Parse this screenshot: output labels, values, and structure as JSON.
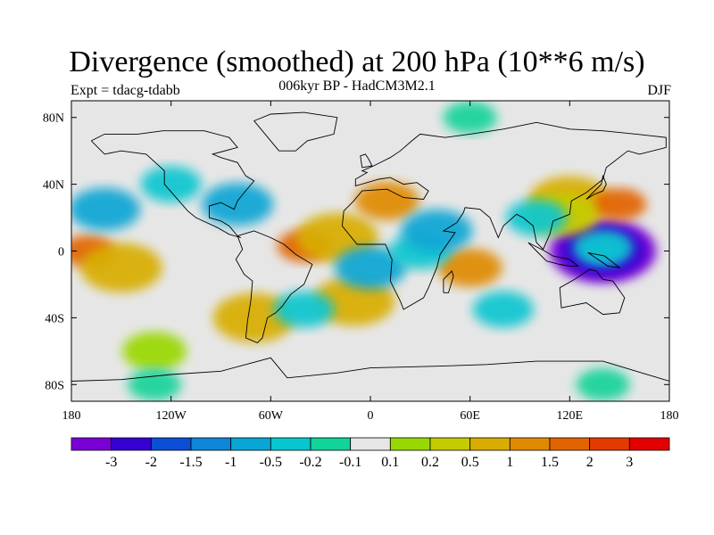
{
  "header": {
    "title": "Divergence (smoothed) at 200 hPa (10**6 m/s)",
    "subtitle": "006kyr BP - HadCM3M2.1",
    "experiment": "Expt = tdacg-tdabb",
    "season": "DJF"
  },
  "map": {
    "projection": "cylindrical equidistant",
    "lon_range": [
      -180,
      180
    ],
    "lat_range": [
      -90,
      90
    ],
    "lat_ticks": [
      {
        "value": 80,
        "label": "80N"
      },
      {
        "value": 40,
        "label": "40N"
      },
      {
        "value": 0,
        "label": "0"
      },
      {
        "value": -40,
        "label": "40S"
      },
      {
        "value": -80,
        "label": "80S"
      }
    ],
    "lon_ticks": [
      {
        "value": -180,
        "label": "180"
      },
      {
        "value": -120,
        "label": "120W"
      },
      {
        "value": -60,
        "label": "60W"
      },
      {
        "value": 0,
        "label": "0"
      },
      {
        "value": 60,
        "label": "60E"
      },
      {
        "value": 120,
        "label": "120E"
      },
      {
        "value": 180,
        "label": "180"
      }
    ]
  },
  "colorbar": {
    "colors": [
      "#7a00d6",
      "#3500d0",
      "#0b4fd6",
      "#0f86d8",
      "#07a6d4",
      "#07c6d0",
      "#12d39a",
      "#e6e6e6",
      "#98d800",
      "#c4cc00",
      "#d8ad00",
      "#e08a00",
      "#e26400",
      "#e23a00",
      "#e20000"
    ],
    "labels": [
      "-3",
      "-2",
      "-1.5",
      "-1",
      "-0.5",
      "-0.2",
      "-0.1",
      "0.1",
      "0.2",
      "0.5",
      "1",
      "1.5",
      "2",
      "3"
    ]
  },
  "anomaly_regions": [
    {
      "lon": 140,
      "lat": 0,
      "level": 0
    },
    {
      "lon": 140,
      "lat": 0,
      "level": 1
    },
    {
      "lon": 140,
      "lat": 0,
      "level": 3
    },
    {
      "lon": 140,
      "lat": 2,
      "level": 5
    },
    {
      "lon": 120,
      "lat": 30,
      "level": 10
    },
    {
      "lon": 150,
      "lat": 28,
      "level": 12
    },
    {
      "lon": 115,
      "lat": 22,
      "level": 9
    },
    {
      "lon": -170,
      "lat": 0,
      "level": 12
    },
    {
      "lon": -150,
      "lat": -10,
      "level": 10
    },
    {
      "lon": -40,
      "lat": 3,
      "level": 12
    },
    {
      "lon": -20,
      "lat": 8,
      "level": 10
    },
    {
      "lon": 60,
      "lat": -10,
      "level": 11
    },
    {
      "lon": 10,
      "lat": 30,
      "level": 11
    },
    {
      "lon": -10,
      "lat": -30,
      "level": 10
    },
    {
      "lon": -70,
      "lat": -40,
      "level": 10
    },
    {
      "lon": -160,
      "lat": 25,
      "level": 4
    },
    {
      "lon": -80,
      "lat": 28,
      "level": 4
    },
    {
      "lon": 0,
      "lat": -10,
      "level": 4
    },
    {
      "lon": 30,
      "lat": 0,
      "level": 5
    },
    {
      "lon": 40,
      "lat": 12,
      "level": 4
    },
    {
      "lon": 100,
      "lat": 20,
      "level": 5
    },
    {
      "lon": -120,
      "lat": 40,
      "level": 5
    },
    {
      "lon": -40,
      "lat": -35,
      "level": 5
    },
    {
      "lon": 80,
      "lat": -35,
      "level": 5
    },
    {
      "lon": -130,
      "lat": -60,
      "level": 8
    },
    {
      "lon": 60,
      "lat": 80,
      "level": 6
    },
    {
      "lon": 140,
      "lat": -80,
      "level": 6
    },
    {
      "lon": -130,
      "lat": -80,
      "level": 6
    }
  ],
  "coastlines": [
    {
      "name": "north-america",
      "points": [
        [
          -168,
          66
        ],
        [
          -160,
          70
        ],
        [
          -140,
          70
        ],
        [
          -125,
          72
        ],
        [
          -100,
          72
        ],
        [
          -85,
          68
        ],
        [
          -80,
          62
        ],
        [
          -95,
          58
        ],
        [
          -90,
          56
        ],
        [
          -80,
          53
        ],
        [
          -75,
          45
        ],
        [
          -70,
          42
        ],
        [
          -76,
          35
        ],
        [
          -80,
          30
        ],
        [
          -82,
          25
        ],
        [
          -90,
          29
        ],
        [
          -97,
          27
        ],
        [
          -97,
          20
        ],
        [
          -90,
          18
        ],
        [
          -85,
          15
        ],
        [
          -80,
          9
        ],
        [
          -78,
          8
        ],
        [
          -85,
          10
        ],
        [
          -92,
          14
        ],
        [
          -105,
          20
        ],
        [
          -110,
          24
        ],
        [
          -117,
          32
        ],
        [
          -124,
          40
        ],
        [
          -124,
          48
        ],
        [
          -135,
          58
        ],
        [
          -150,
          60
        ],
        [
          -160,
          58
        ],
        [
          -168,
          66
        ]
      ]
    },
    {
      "name": "south-america",
      "points": [
        [
          -80,
          9
        ],
        [
          -77,
          1
        ],
        [
          -81,
          -5
        ],
        [
          -76,
          -14
        ],
        [
          -71,
          -18
        ],
        [
          -72,
          -30
        ],
        [
          -74,
          -42
        ],
        [
          -75,
          -52
        ],
        [
          -68,
          -55
        ],
        [
          -65,
          -52
        ],
        [
          -62,
          -40
        ],
        [
          -57,
          -37
        ],
        [
          -53,
          -33
        ],
        [
          -48,
          -26
        ],
        [
          -40,
          -20
        ],
        [
          -35,
          -8
        ],
        [
          -45,
          -2
        ],
        [
          -52,
          4
        ],
        [
          -60,
          8
        ],
        [
          -70,
          12
        ],
        [
          -80,
          9
        ]
      ]
    },
    {
      "name": "africa-eurasia",
      "points": [
        [
          -17,
          15
        ],
        [
          -16,
          24
        ],
        [
          -10,
          30
        ],
        [
          -5,
          36
        ],
        [
          10,
          37
        ],
        [
          20,
          32
        ],
        [
          32,
          31
        ],
        [
          35,
          36
        ],
        [
          28,
          41
        ],
        [
          20,
          40
        ],
        [
          12,
          44
        ],
        [
          5,
          43
        ],
        [
          -9,
          39
        ],
        [
          -9,
          43
        ],
        [
          -2,
          47
        ],
        [
          -5,
          48
        ],
        [
          2,
          51
        ],
        [
          8,
          54
        ],
        [
          12,
          56
        ],
        [
          18,
          60
        ],
        [
          25,
          66
        ],
        [
          30,
          70
        ],
        [
          45,
          68
        ],
        [
          60,
          70
        ],
        [
          80,
          73
        ],
        [
          100,
          77
        ],
        [
          120,
          73
        ],
        [
          140,
          72
        ],
        [
          160,
          70
        ],
        [
          178,
          68
        ],
        [
          178,
          62
        ],
        [
          162,
          58
        ],
        [
          155,
          60
        ],
        [
          142,
          50
        ],
        [
          140,
          43
        ],
        [
          130,
          35
        ],
        [
          121,
          30
        ],
        [
          120,
          22
        ],
        [
          110,
          18
        ],
        [
          108,
          10
        ],
        [
          104,
          1
        ],
        [
          100,
          5
        ],
        [
          98,
          15
        ],
        [
          92,
          20
        ],
        [
          88,
          22
        ],
        [
          80,
          15
        ],
        [
          77,
          8
        ],
        [
          72,
          20
        ],
        [
          66,
          25
        ],
        [
          57,
          26
        ],
        [
          56,
          23
        ],
        [
          52,
          17
        ],
        [
          44,
          12
        ],
        [
          51,
          11
        ],
        [
          42,
          -2
        ],
        [
          40,
          -10
        ],
        [
          35,
          -22
        ],
        [
          32,
          -28
        ],
        [
          20,
          -35
        ],
        [
          18,
          -30
        ],
        [
          12,
          -18
        ],
        [
          13,
          -5
        ],
        [
          9,
          4
        ],
        [
          -8,
          4
        ],
        [
          -17,
          15
        ]
      ]
    },
    {
      "name": "australia",
      "points": [
        [
          114,
          -22
        ],
        [
          123,
          -17
        ],
        [
          132,
          -11
        ],
        [
          136,
          -12
        ],
        [
          140,
          -17
        ],
        [
          146,
          -18
        ],
        [
          153,
          -28
        ],
        [
          150,
          -37
        ],
        [
          140,
          -38
        ],
        [
          130,
          -31
        ],
        [
          115,
          -34
        ],
        [
          114,
          -22
        ]
      ]
    },
    {
      "name": "greenland",
      "points": [
        [
          -55,
          60
        ],
        [
          -45,
          60
        ],
        [
          -38,
          66
        ],
        [
          -22,
          70
        ],
        [
          -20,
          80
        ],
        [
          -40,
          83
        ],
        [
          -60,
          82
        ],
        [
          -70,
          78
        ],
        [
          -55,
          60
        ]
      ]
    },
    {
      "name": "antarctica",
      "points": [
        [
          -180,
          -78
        ],
        [
          -150,
          -77
        ],
        [
          -120,
          -74
        ],
        [
          -90,
          -72
        ],
        [
          -60,
          -64
        ],
        [
          -50,
          -76
        ],
        [
          -20,
          -73
        ],
        [
          0,
          -70
        ],
        [
          40,
          -69
        ],
        [
          70,
          -68
        ],
        [
          100,
          -66
        ],
        [
          140,
          -66
        ],
        [
          160,
          -72
        ],
        [
          180,
          -78
        ]
      ]
    },
    {
      "name": "madagascar",
      "points": [
        [
          44,
          -25
        ],
        [
          47,
          -25
        ],
        [
          50,
          -15
        ],
        [
          49,
          -12
        ],
        [
          44,
          -17
        ],
        [
          44,
          -25
        ]
      ]
    },
    {
      "name": "indonesia",
      "points": [
        [
          95,
          5
        ],
        [
          100,
          0
        ],
        [
          106,
          -6
        ],
        [
          114,
          -8
        ],
        [
          120,
          -9
        ],
        [
          125,
          -9
        ],
        [
          120,
          -5
        ],
        [
          110,
          -3
        ],
        [
          105,
          0
        ],
        [
          95,
          5
        ]
      ]
    },
    {
      "name": "new-guinea",
      "points": [
        [
          131,
          -1
        ],
        [
          141,
          -3
        ],
        [
          150,
          -10
        ],
        [
          143,
          -9
        ],
        [
          137,
          -5
        ],
        [
          131,
          -1
        ]
      ]
    },
    {
      "name": "japan",
      "points": [
        [
          130,
          31
        ],
        [
          135,
          34
        ],
        [
          140,
          36
        ],
        [
          142,
          40
        ],
        [
          140,
          45
        ],
        [
          139,
          40
        ],
        [
          134,
          35
        ],
        [
          130,
          31
        ]
      ]
    },
    {
      "name": "uk",
      "points": [
        [
          -5,
          50
        ],
        [
          1,
          51
        ],
        [
          -1,
          55
        ],
        [
          -3,
          58
        ],
        [
          -6,
          57
        ],
        [
          -5,
          50
        ]
      ]
    }
  ]
}
